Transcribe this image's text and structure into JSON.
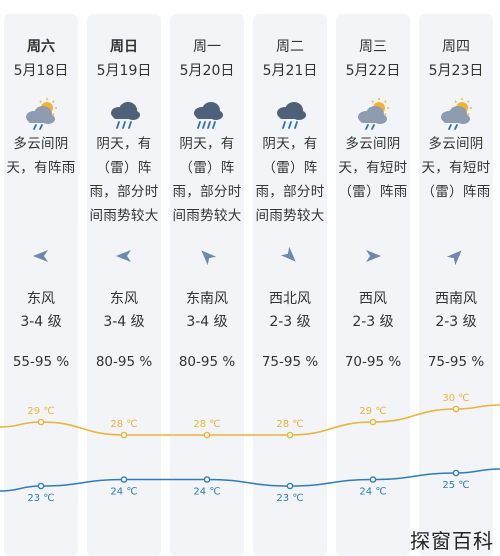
{
  "days": [
    {
      "name": "周六",
      "date": "5月18日",
      "icon": "partly-cloudy-shower-icon",
      "desc": [
        "多云间阴",
        "天，有阵雨"
      ],
      "wind_arrow": "arrow-left-icon",
      "wind_dir": "东风",
      "wind_level": "3-4 级",
      "humidity": "55-95 %",
      "high": "29 ℃",
      "low": "23 ℃",
      "weekend": true
    },
    {
      "name": "周日",
      "date": "5月19日",
      "icon": "rain-cloud-icon",
      "desc": [
        "阴天，有",
        "（雷）阵",
        "雨，部分时",
        "间雨势较大"
      ],
      "wind_arrow": "arrow-left-icon",
      "wind_dir": "东风",
      "wind_level": "3-4 级",
      "humidity": "80-95 %",
      "high": "28 ℃",
      "low": "24 ℃",
      "weekend": true
    },
    {
      "name": "周一",
      "date": "5月20日",
      "icon": "heavy-rain-cloud-icon",
      "desc": [
        "阴天，有",
        "（雷）阵",
        "雨，部分时",
        "间雨势较大"
      ],
      "wind_arrow": "arrow-up-left-icon",
      "wind_dir": "东南风",
      "wind_level": "3-4 级",
      "humidity": "80-95 %",
      "high": "28 ℃",
      "low": "24 ℃",
      "weekend": false
    },
    {
      "name": "周二",
      "date": "5月21日",
      "icon": "rain-cloud-icon",
      "desc": [
        "阴天，有",
        "（雷）阵",
        "雨，部分时",
        "间雨势较大"
      ],
      "wind_arrow": "arrow-down-right-icon",
      "wind_dir": "西北风",
      "wind_level": "2-3 级",
      "humidity": "75-95 %",
      "high": "28 ℃",
      "low": "23 ℃",
      "weekend": false
    },
    {
      "name": "周三",
      "date": "5月22日",
      "icon": "partly-cloudy-shower-icon",
      "desc": [
        "多云间阴",
        "天，有短时",
        "（雷）阵雨"
      ],
      "wind_arrow": "arrow-right-icon",
      "wind_dir": "西风",
      "wind_level": "2-3 级",
      "humidity": "70-95 %",
      "high": "29 ℃",
      "low": "24 ℃",
      "weekend": false
    },
    {
      "name": "周四",
      "date": "5月23日",
      "icon": "partly-cloudy-shower-icon",
      "desc": [
        "多云间阴",
        "天，有短时",
        "（雷）阵雨"
      ],
      "wind_arrow": "arrow-up-right-icon",
      "wind_dir": "西南风",
      "wind_level": "2-3 级",
      "humidity": "75-95 %",
      "high": "30 ℃",
      "low": "25 ℃",
      "weekend": false
    }
  ],
  "colors": {
    "high": "#e8b43a",
    "low": "#2e7db8",
    "column_bg": "#f2f4f7",
    "arrow": "#6d89ad"
  },
  "watermark": "探窗百科"
}
